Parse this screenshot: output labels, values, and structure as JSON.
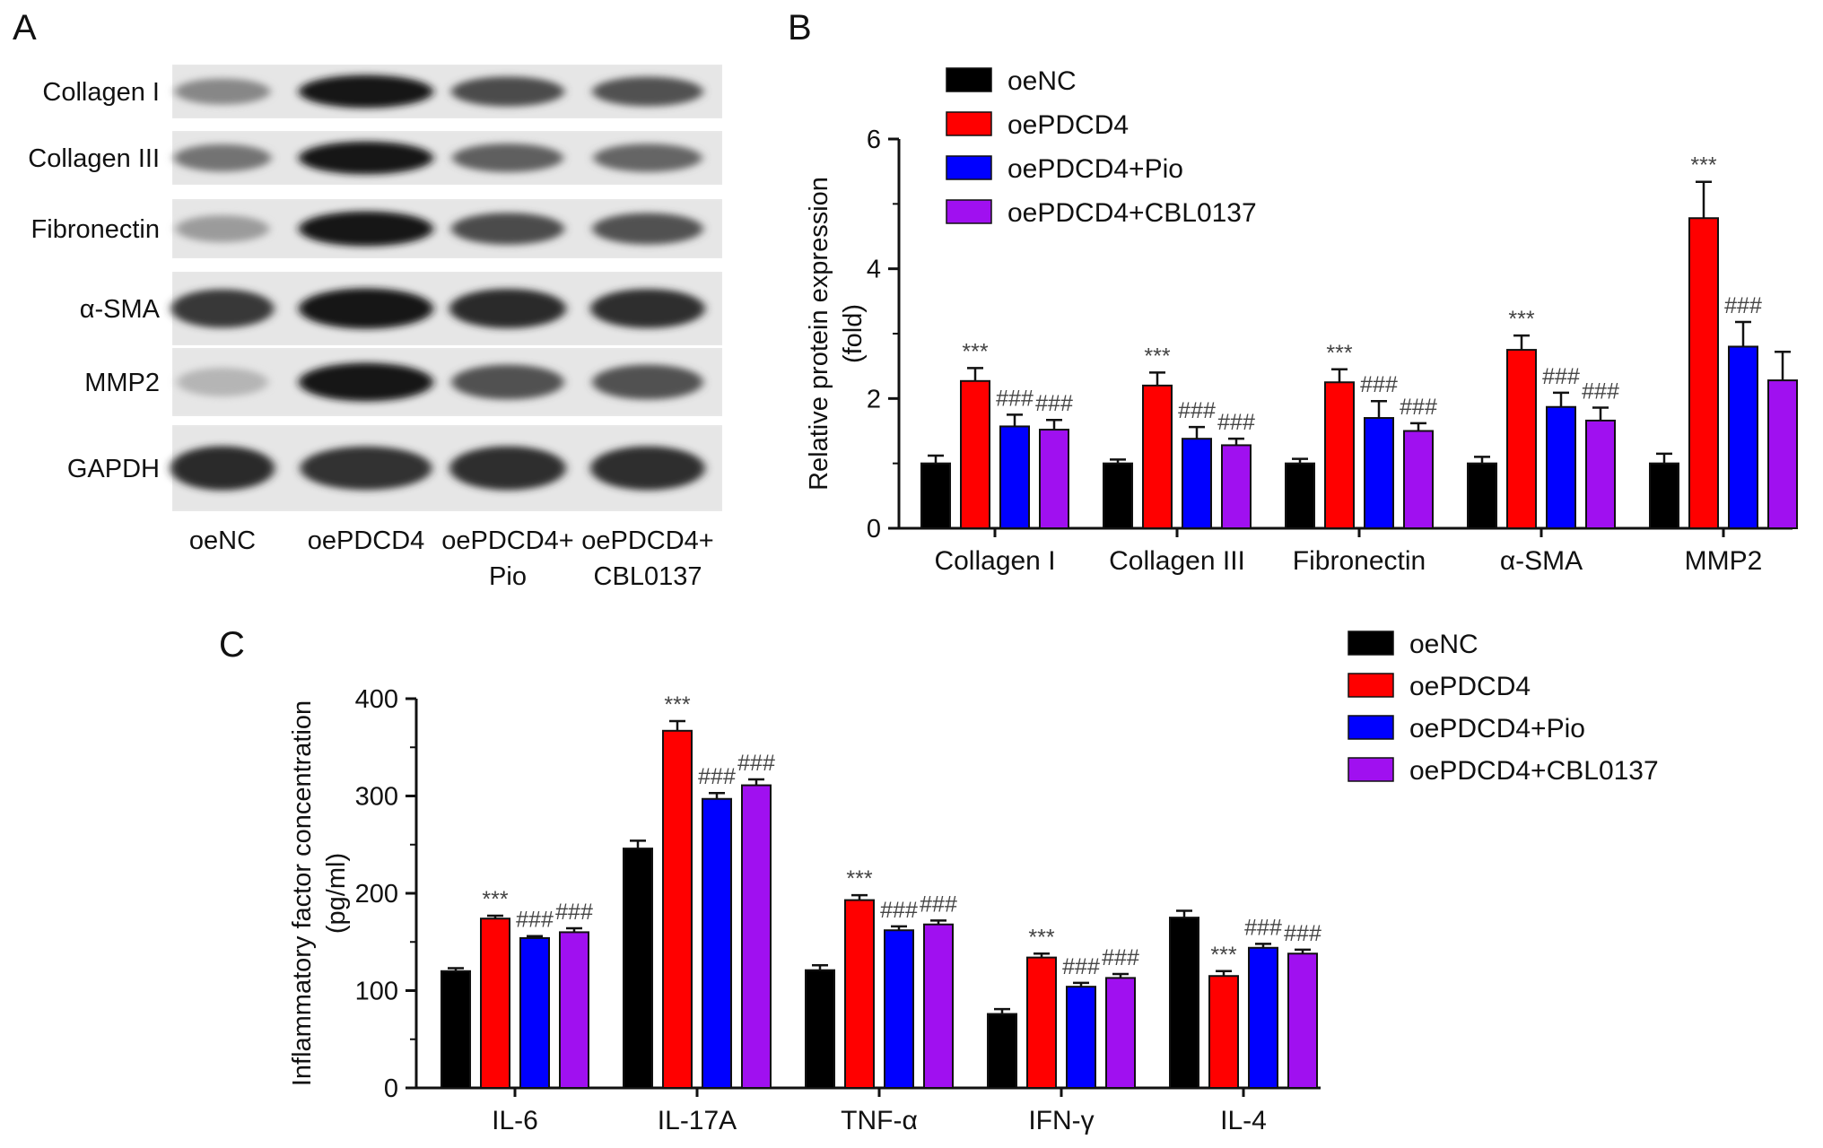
{
  "panels": {
    "a_letter": "A",
    "b_letter": "B",
    "c_letter": "C"
  },
  "colors": {
    "oeNC": "#000000",
    "oePDCD4": "#ff0000",
    "oePDCD4+Pio": "#0000ff",
    "oePDCD4+CBL0137": "#a010f0"
  },
  "western_blot": {
    "proteins": [
      "Collagen I",
      "Collagen III",
      "Fibronectin",
      "α-SMA",
      "MMP2",
      "GAPDH"
    ],
    "lanes": [
      {
        "line1": "oeNC",
        "line2": ""
      },
      {
        "line1": "oePDCD4",
        "line2": ""
      },
      {
        "line1": "oePDCD4+",
        "line2": "Pio"
      },
      {
        "line1": "oePDCD4+",
        "line2": "CBL0137"
      }
    ],
    "band_intensity": [
      [
        0.45,
        1.0,
        0.75,
        0.72
      ],
      [
        0.55,
        1.0,
        0.65,
        0.62
      ],
      [
        0.35,
        1.0,
        0.75,
        0.72
      ],
      [
        0.85,
        1.0,
        0.92,
        0.9
      ],
      [
        0.22,
        1.0,
        0.72,
        0.72
      ],
      [
        0.92,
        0.88,
        0.9,
        0.9
      ]
    ]
  },
  "chart_data": [
    {
      "type": "bar",
      "panel": "B",
      "ylabel": "Relative protein expression (fold)",
      "ylabel_lines": [
        "Relative protein expression",
        "(fold)"
      ],
      "ylim": [
        0,
        6
      ],
      "yticks": [
        "0",
        "2",
        "4",
        "6"
      ],
      "categories": [
        "Collagen I",
        "Collagen III",
        "Fibronectin",
        "α-SMA",
        "MMP2"
      ],
      "series": [
        {
          "name": "oeNC",
          "values": [
            1.0,
            1.0,
            1.0,
            1.0,
            1.0
          ],
          "errors": [
            0.12,
            0.06,
            0.07,
            0.1,
            0.15
          ],
          "sig": [
            "",
            "",
            "",
            "",
            ""
          ]
        },
        {
          "name": "oePDCD4",
          "values": [
            2.27,
            2.2,
            2.25,
            2.75,
            4.78
          ],
          "errors": [
            0.2,
            0.2,
            0.2,
            0.22,
            0.56
          ],
          "sig": [
            "***",
            "***",
            "***",
            "***",
            "***"
          ]
        },
        {
          "name": "oePDCD4+Pio",
          "values": [
            1.57,
            1.38,
            1.7,
            1.87,
            2.8
          ],
          "errors": [
            0.18,
            0.18,
            0.26,
            0.22,
            0.38
          ],
          "sig": [
            "###",
            "###",
            "###",
            "###",
            "###"
          ]
        },
        {
          "name": "oePDCD4+CBL0137",
          "values": [
            1.52,
            1.28,
            1.5,
            1.66,
            2.28
          ],
          "errors": [
            0.15,
            0.1,
            0.12,
            0.2,
            0.44
          ],
          "sig": [
            "###",
            "###",
            "###",
            "###",
            ""
          ]
        }
      ],
      "legend_position": "top-left"
    },
    {
      "type": "bar",
      "panel": "C",
      "ylabel": "Inflammatory factor concentration (pg/ml)",
      "ylabel_lines": [
        "Inflammatory factor concentration",
        "(pg/ml)"
      ],
      "ylim": [
        0,
        400
      ],
      "yticks": [
        "0",
        "100",
        "200",
        "300",
        "400"
      ],
      "categories": [
        "IL-6",
        "IL-17A",
        "TNF-α",
        "IFN-γ",
        "IL-4"
      ],
      "series": [
        {
          "name": "oeNC",
          "values": [
            120,
            246,
            121,
            76,
            175
          ],
          "errors": [
            3,
            8,
            5,
            5,
            7
          ],
          "sig": [
            "",
            "",
            "",
            "",
            ""
          ]
        },
        {
          "name": "oePDCD4",
          "values": [
            174,
            367,
            193,
            134,
            115
          ],
          "errors": [
            3,
            10,
            5,
            4,
            5
          ],
          "sig": [
            "***",
            "***",
            "***",
            "***",
            "***"
          ]
        },
        {
          "name": "oePDCD4+Pio",
          "values": [
            154,
            297,
            162,
            104,
            144
          ],
          "errors": [
            2,
            6,
            4,
            4,
            4
          ],
          "sig": [
            "###",
            "###",
            "###",
            "###",
            "###"
          ]
        },
        {
          "name": "oePDCD4+CBL0137",
          "values": [
            160,
            311,
            168,
            113,
            138
          ],
          "errors": [
            4,
            6,
            4,
            4,
            4
          ],
          "sig": [
            "###",
            "###",
            "###",
            "###",
            "###"
          ]
        }
      ],
      "legend_position": "top-right"
    }
  ]
}
